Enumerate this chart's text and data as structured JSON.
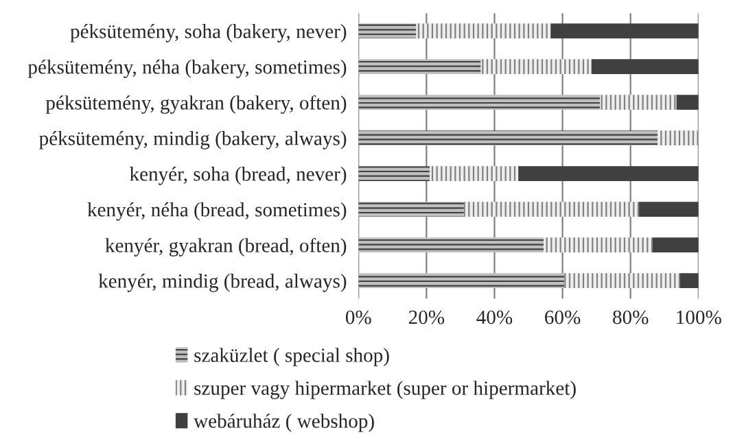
{
  "chart_data": {
    "type": "bar",
    "orientation": "horizontal",
    "stacked": true,
    "categories": [
      "péksütemény, soha (bakery, never)",
      "péksütemény, néha (bakery, sometimes)",
      "péksütemény, gyakran (bakery, often)",
      "péksütemény, mindig (bakery, always)",
      "kenyér, soha (bread, never)",
      "kenyér, néha (bread, sometimes)",
      "kenyér, gyakran (bread, often)",
      "kenyér, mindig (bread, always)"
    ],
    "series": [
      {
        "name": "szaküzlet ( special shop)",
        "color": "#bfbfbf",
        "values": [
          17,
          36,
          71,
          88,
          21,
          31,
          54.5,
          60.5
        ]
      },
      {
        "name": "szuper vagy hipermarket (super or hipermarket)",
        "color": "#eeeeee",
        "values": [
          39.5,
          32.5,
          22.5,
          12,
          26,
          51.5,
          32,
          34
        ]
      },
      {
        "name": "webáruház ( webshop)",
        "color": "#404040",
        "values": [
          43.5,
          31.5,
          6.5,
          0,
          53,
          17.5,
          13.5,
          5.5
        ]
      }
    ],
    "xlim": [
      0,
      100
    ],
    "xticks": [
      {
        "value": 0,
        "label": "0%"
      },
      {
        "value": 20,
        "label": "20%"
      },
      {
        "value": 40,
        "label": "40%"
      },
      {
        "value": 60,
        "label": "60%"
      },
      {
        "value": 80,
        "label": "80%"
      },
      {
        "value": 100,
        "label": "100%"
      }
    ],
    "grid": "x",
    "legend": "bottom"
  }
}
